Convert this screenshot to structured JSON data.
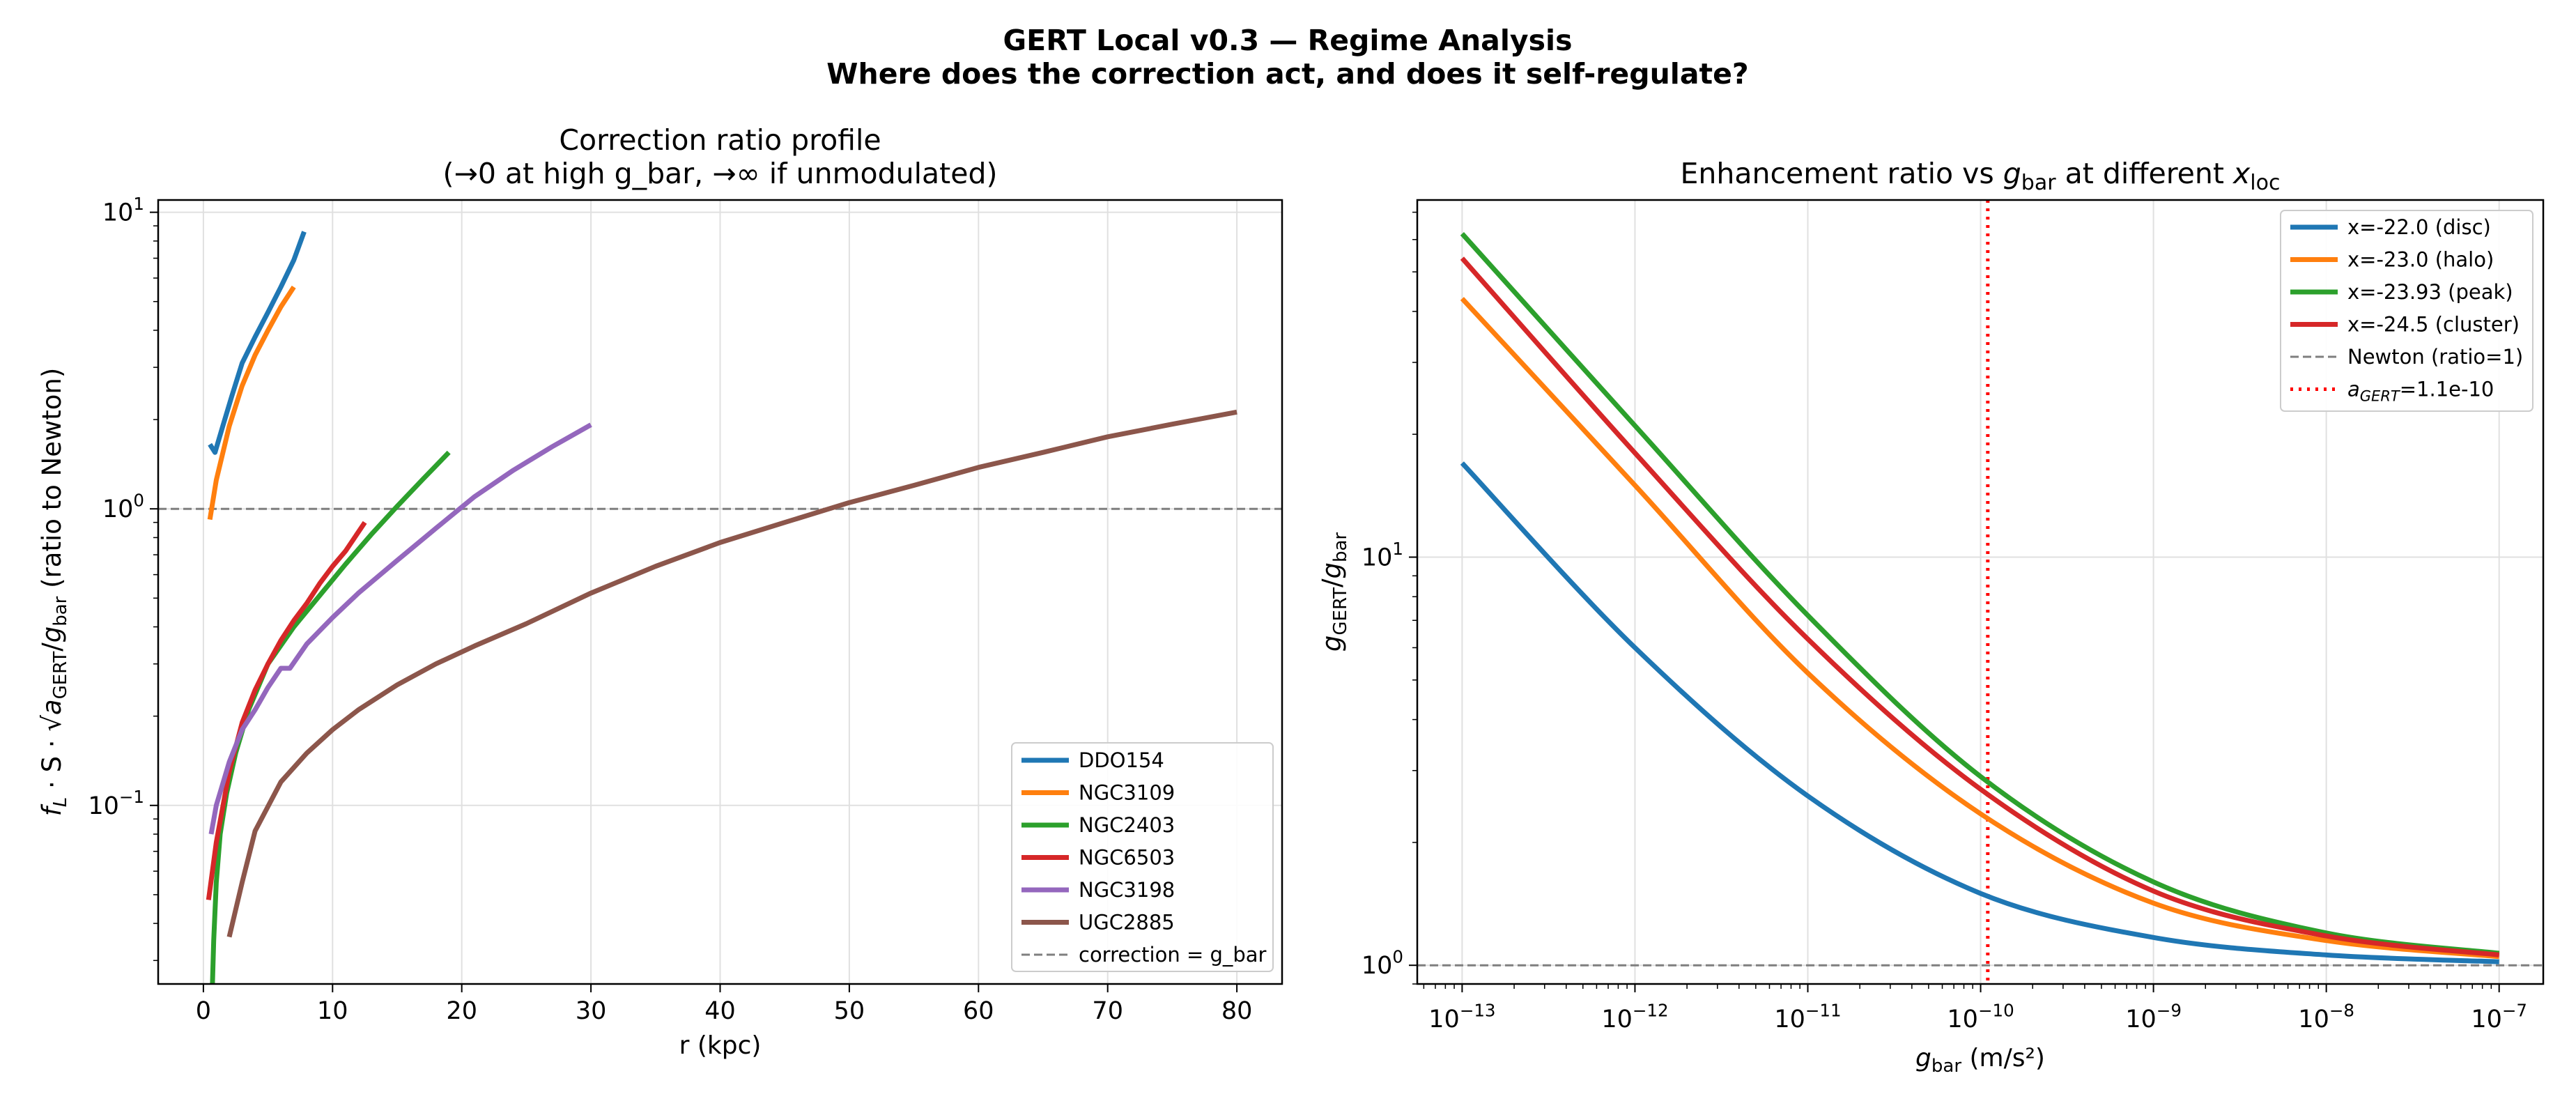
{
  "figure": {
    "title_line1": "GERT Local v0.3 — Regime Analysis",
    "title_line2": "Where does the correction act, and does it self-regulate?"
  },
  "chart_data": [
    {
      "type": "line",
      "title_line1": "Correction ratio profile",
      "title_line2": "(→0 at high g_bar, →∞ if unmodulated)",
      "xlabel": "r (kpc)",
      "ylabel_parts": [
        "f",
        "L",
        " · S · √",
        "a",
        "GERT",
        "/",
        "g",
        "bar",
        "  (ratio to Newton)"
      ],
      "xlim": [
        -3.5,
        83.5
      ],
      "ylim": [
        0.025,
        11
      ],
      "yscale": "log",
      "xticks": [
        0,
        10,
        20,
        30,
        40,
        50,
        60,
        70,
        80
      ],
      "yticks": [
        {
          "value": 0.1,
          "base": "10",
          "exp": "−1"
        },
        {
          "value": 1,
          "base": "10",
          "exp": "0"
        },
        {
          "value": 10,
          "base": "10",
          "exp": "1"
        }
      ],
      "grid": true,
      "legend_position": "lower-right",
      "reference_line": {
        "y": 1,
        "label": "correction = g_bar",
        "color": "#7f7f7f"
      },
      "series": [
        {
          "name": "DDO154",
          "color": "#1f77b4",
          "x": [
            0.5,
            0.9,
            1.5,
            2.2,
            3.0,
            4.0,
            5.0,
            6.0,
            7.0,
            7.8
          ],
          "y": [
            1.65,
            1.55,
            1.9,
            2.4,
            3.1,
            3.8,
            4.6,
            5.6,
            6.9,
            8.6
          ]
        },
        {
          "name": "NGC3109",
          "color": "#ff7f0e",
          "x": [
            0.5,
            1.0,
            2.0,
            3.0,
            4.0,
            5.0,
            6.0,
            7.0
          ],
          "y": [
            0.92,
            1.25,
            1.9,
            2.6,
            3.3,
            4.0,
            4.8,
            5.6
          ]
        },
        {
          "name": "NGC2403",
          "color": "#2ca02c",
          "x": [
            0.7,
            0.8,
            1.0,
            1.3,
            1.8,
            2.5,
            3.5,
            5.0,
            7.0,
            9.0,
            11.0,
            13.0,
            15.0,
            17.0,
            19.0
          ],
          "y": [
            0.025,
            0.035,
            0.055,
            0.08,
            0.11,
            0.15,
            0.21,
            0.3,
            0.4,
            0.51,
            0.65,
            0.82,
            1.02,
            1.26,
            1.55
          ]
        },
        {
          "name": "NGC6503",
          "color": "#d62728",
          "x": [
            0.4,
            1.0,
            2.0,
            3.0,
            4.0,
            5.0,
            6.0,
            7.0,
            8.0,
            9.0,
            10.0,
            11.0,
            12.5
          ],
          "y": [
            0.048,
            0.075,
            0.13,
            0.19,
            0.245,
            0.3,
            0.36,
            0.42,
            0.48,
            0.56,
            0.64,
            0.72,
            0.9
          ]
        },
        {
          "name": "NGC3198",
          "color": "#9467bd",
          "x": [
            0.6,
            1.0,
            2.0,
            3.0,
            4.0,
            5.0,
            6.0,
            6.7,
            8.0,
            10.0,
            12.0,
            15.0,
            18.0,
            21.0,
            24.0,
            27.0,
            30.0
          ],
          "y": [
            0.08,
            0.1,
            0.14,
            0.18,
            0.21,
            0.25,
            0.29,
            0.29,
            0.35,
            0.43,
            0.52,
            0.67,
            0.86,
            1.1,
            1.35,
            1.62,
            1.92
          ]
        },
        {
          "name": "UGC2885",
          "color": "#8c564b",
          "x": [
            2.0,
            3.0,
            4.0,
            6.0,
            8.0,
            10.0,
            12.0,
            15.0,
            18.0,
            21.0,
            25.0,
            30.0,
            35.0,
            40.0,
            45.0,
            50.0,
            55.0,
            60.0,
            65.0,
            70.0,
            75.0,
            80.0
          ],
          "y": [
            0.036,
            0.055,
            0.082,
            0.12,
            0.15,
            0.18,
            0.21,
            0.255,
            0.3,
            0.345,
            0.41,
            0.52,
            0.64,
            0.77,
            0.9,
            1.05,
            1.2,
            1.38,
            1.55,
            1.75,
            1.93,
            2.12
          ]
        }
      ]
    },
    {
      "type": "line",
      "title_parts": [
        "Enhancement ratio vs ",
        "g",
        "bar",
        " at different ",
        "x",
        "loc"
      ],
      "xlabel_parts": [
        "g",
        "bar",
        " (m/s²)"
      ],
      "ylabel_parts": [
        "g",
        "GERT",
        "/",
        "g",
        "bar"
      ],
      "xscale": "log",
      "yscale": "log",
      "xlim": [
        5.5e-14,
        1.8e-07
      ],
      "ylim": [
        0.9,
        75
      ],
      "xticks": [
        {
          "value": 1e-13,
          "base": "10",
          "exp": "−13"
        },
        {
          "value": 1e-12,
          "base": "10",
          "exp": "−12"
        },
        {
          "value": 1e-11,
          "base": "10",
          "exp": "−11"
        },
        {
          "value": 1e-10,
          "base": "10",
          "exp": "−10"
        },
        {
          "value": 1e-09,
          "base": "10",
          "exp": "−9"
        },
        {
          "value": 1e-08,
          "base": "10",
          "exp": "−8"
        },
        {
          "value": 1e-07,
          "base": "10",
          "exp": "−7"
        }
      ],
      "yticks": [
        {
          "value": 1,
          "base": "10",
          "exp": "0"
        },
        {
          "value": 10,
          "base": "10",
          "exp": "1"
        }
      ],
      "grid": true,
      "legend_position": "upper-right",
      "reference_line": {
        "y": 1,
        "label": "Newton (ratio=1)",
        "color": "#7f7f7f"
      },
      "vertical_line": {
        "x": 1.1e-10,
        "label_parts": [
          "a",
          "GERT",
          "=1.1e-10"
        ],
        "color": "#ff0000"
      },
      "series": [
        {
          "name": "x=-22.0 (disc)",
          "color": "#1f77b4",
          "x": [
            1e-13,
            1e-12,
            1e-11,
            1e-10,
            1e-09,
            1e-08,
            1e-07
          ],
          "y": [
            17,
            6.0,
            2.6,
            1.5,
            1.17,
            1.06,
            1.02
          ]
        },
        {
          "name": "x=-23.0 (halo)",
          "color": "#ff7f0e",
          "x": [
            1e-13,
            1e-12,
            1e-11,
            1e-10,
            1e-09,
            1e-08,
            1e-07
          ],
          "y": [
            43,
            15,
            5.2,
            2.35,
            1.42,
            1.15,
            1.05
          ]
        },
        {
          "name": "x=-23.93 (peak)",
          "color": "#2ca02c",
          "x": [
            1e-13,
            1e-12,
            1e-11,
            1e-10,
            1e-09,
            1e-08,
            1e-07
          ],
          "y": [
            62,
            21,
            7.2,
            2.9,
            1.6,
            1.2,
            1.07
          ]
        },
        {
          "name": "x=-24.5 (cluster)",
          "color": "#d62728",
          "x": [
            1e-13,
            1e-12,
            1e-11,
            1e-10,
            1e-09,
            1e-08,
            1e-07
          ],
          "y": [
            54,
            18,
            6.3,
            2.7,
            1.52,
            1.18,
            1.06
          ]
        }
      ]
    }
  ]
}
